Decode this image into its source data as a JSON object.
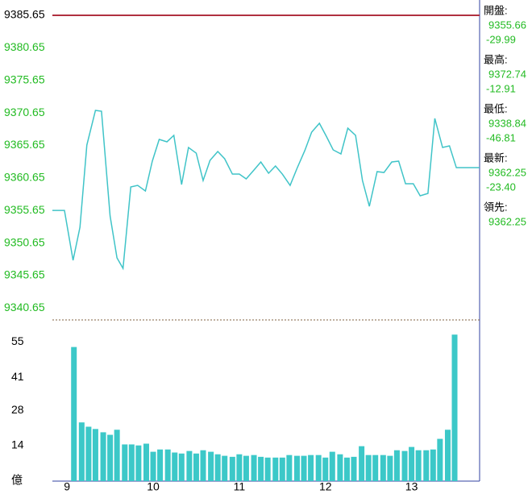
{
  "chart_data": [
    {
      "type": "line",
      "color": "#40c4c8",
      "ref_line": 9385.65,
      "ref_color": "#b03040",
      "xlim": [
        8.83,
        13.79
      ],
      "ylim": [
        9338.84,
        9385.65
      ],
      "yticks": [
        9340.65,
        9345.65,
        9350.65,
        9355.65,
        9360.65,
        9365.65,
        9370.65,
        9375.65,
        9380.65,
        9385.65
      ],
      "x": [
        8.83,
        8.97,
        9.07,
        9.15,
        9.23,
        9.33,
        9.4,
        9.5,
        9.58,
        9.65,
        9.74,
        9.82,
        9.91,
        9.99,
        10.07,
        10.16,
        10.24,
        10.33,
        10.41,
        10.5,
        10.58,
        10.66,
        10.75,
        10.83,
        10.92,
        11.0,
        11.08,
        11.17,
        11.25,
        11.34,
        11.42,
        11.5,
        11.59,
        11.67,
        11.76,
        11.84,
        11.93,
        12.01,
        12.09,
        12.18,
        12.26,
        12.35,
        12.43,
        12.51,
        12.6,
        12.68,
        12.77,
        12.85,
        12.93,
        13.02,
        13.1,
        13.19,
        13.27,
        13.36,
        13.44,
        13.52,
        13.79
      ],
      "values": [
        9355.66,
        9355.66,
        9348.0,
        9353.08,
        9365.71,
        9371.04,
        9370.91,
        9354.81,
        9348.37,
        9346.76,
        9359.27,
        9359.52,
        9358.65,
        9363.24,
        9366.58,
        9366.21,
        9367.2,
        9359.65,
        9365.34,
        9364.47,
        9360.26,
        9363.36,
        9364.72,
        9363.61,
        9361.25,
        9361.25,
        9360.51,
        9361.87,
        9363.11,
        9361.38,
        9362.49,
        9361.25,
        9359.52,
        9362.12,
        9364.85,
        9367.69,
        9369.06,
        9367.07,
        9364.97,
        9364.35,
        9368.31,
        9367.2,
        9360.26,
        9356.3,
        9361.63,
        9361.5,
        9363.11,
        9363.24,
        9359.77,
        9359.77,
        9357.91,
        9358.28,
        9369.8,
        9365.34,
        9365.59,
        9362.24,
        9362.25
      ]
    },
    {
      "type": "bar",
      "color": "#3cc8c8",
      "y_unit": "億",
      "xlim": [
        8.83,
        13.79
      ],
      "xticks": [
        9,
        10,
        11,
        12,
        13
      ],
      "ylim": [
        0,
        63.7
      ],
      "yticks": [
        14,
        28,
        41,
        55
      ],
      "x": [
        9.08,
        9.17,
        9.25,
        9.33,
        9.42,
        9.5,
        9.58,
        9.67,
        9.75,
        9.83,
        9.92,
        10,
        10.08,
        10.17,
        10.25,
        10.33,
        10.42,
        10.5,
        10.58,
        10.67,
        10.75,
        10.83,
        10.92,
        11,
        11.08,
        11.17,
        11.25,
        11.33,
        11.42,
        11.5,
        11.58,
        11.67,
        11.75,
        11.83,
        11.92,
        12,
        12.08,
        12.17,
        12.25,
        12.33,
        12.42,
        12.5,
        12.58,
        12.67,
        12.75,
        12.83,
        12.92,
        13,
        13.08,
        13.17,
        13.25,
        13.33,
        13.42,
        13.5
      ],
      "values": [
        53,
        23.2,
        21.5,
        20.6,
        19.3,
        18.3,
        20.3,
        14.5,
        14.5,
        14.1,
        14.8,
        11.6,
        12.5,
        12.5,
        11.3,
        10.9,
        11.9,
        10.9,
        12.2,
        11.6,
        10.6,
        10,
        9.6,
        10.6,
        10,
        10.3,
        9.6,
        9.3,
        9.3,
        9.3,
        10.3,
        10,
        10,
        10.3,
        10.3,
        9.3,
        11.6,
        10.6,
        9.3,
        9.6,
        13.8,
        10.3,
        10.3,
        10.3,
        10,
        12.2,
        11.9,
        13.5,
        12.2,
        12.2,
        12.5,
        16.7,
        20.3,
        57.9
      ]
    }
  ],
  "info_panel": [
    {
      "label": "開盤:",
      "value": "9355.66",
      "change": "-29.99"
    },
    {
      "label": "最高:",
      "value": "9372.74",
      "change": "-12.91"
    },
    {
      "label": "最低:",
      "value": "9338.84",
      "change": "-46.81"
    },
    {
      "label": "最新:",
      "value": "9362.25",
      "change": "-23.40"
    },
    {
      "label": "領先:",
      "value": "9362.25"
    }
  ]
}
